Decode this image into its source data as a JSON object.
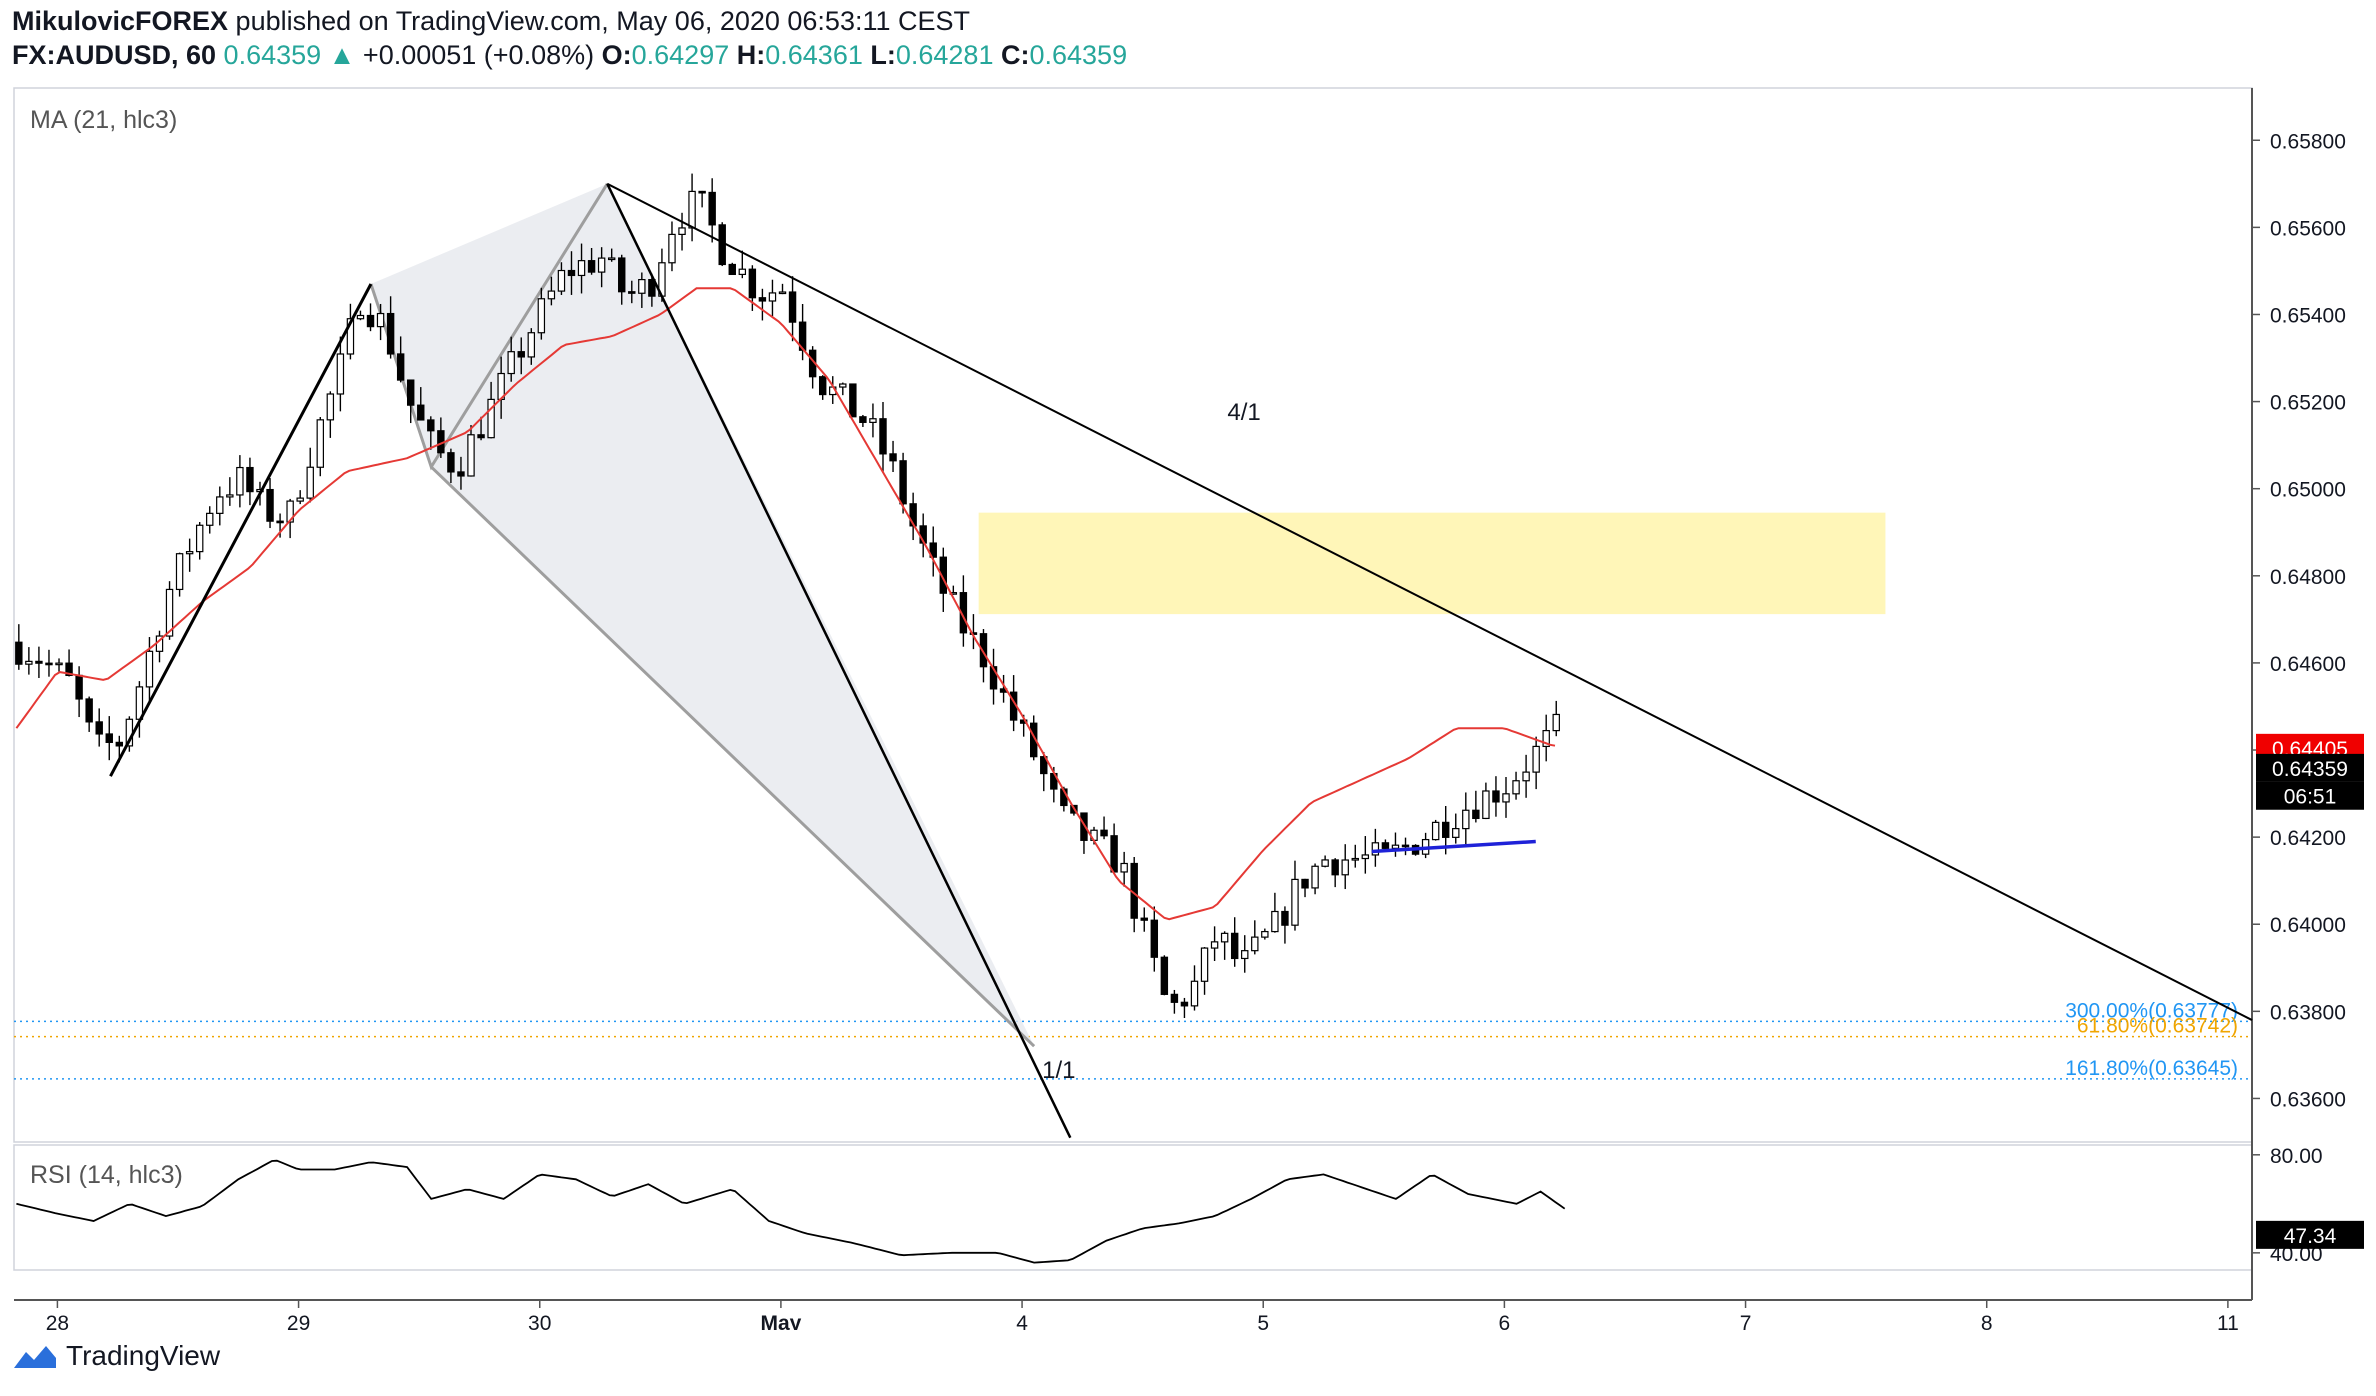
{
  "header": {
    "author": "MikulovicFOREX",
    "published_text": " published on TradingView.com, May 06, 2020 06:53:11 CEST",
    "symbol": "FX:AUDUSD, 60",
    "last": "0.64359",
    "change": "+0.00051 (+0.08%)",
    "o_label": "O:",
    "o": "0.64297",
    "h_label": "H:",
    "h": "0.64361",
    "l_label": "L:",
    "l": "0.64281",
    "c_label": "C:",
    "c": "0.64359"
  },
  "indicators": {
    "ma_label": "MA (21, hlc3)",
    "rsi_label": "RSI (14, hlc3)"
  },
  "footer": {
    "brand": "TradingView"
  },
  "colors": {
    "ma_line": "#e53935",
    "candle": "#000000",
    "zone": "#fff6b8",
    "harmonic_fill": "#e6e8ee",
    "fib_blue": "#2196f3",
    "fib_orange": "#f0a500",
    "support_line": "#1e22d8",
    "price_tag_ma": "#f00000",
    "price_tag_last": "#000000"
  },
  "chart_data": {
    "type": "candlestick",
    "symbol": "FX:AUDUSD",
    "timeframe": "60",
    "price_axis": {
      "ylim": [
        0.635,
        0.6592
      ],
      "ticks": [
        "0.65800",
        "0.65600",
        "0.65400",
        "0.65200",
        "0.65000",
        "0.64800",
        "0.64600",
        "0.64400",
        "0.64200",
        "0.64000",
        "0.63800",
        "0.63600"
      ]
    },
    "time_axis": {
      "days": [
        {
          "label": "28",
          "day": 0
        },
        {
          "label": "29",
          "day": 1
        },
        {
          "label": "30",
          "day": 2
        },
        {
          "label": "May",
          "day": 3
        },
        {
          "label": "4",
          "day": 4
        },
        {
          "label": "5",
          "day": 5
        },
        {
          "label": "6",
          "day": 6
        },
        {
          "label": "7",
          "day": 7
        },
        {
          "label": "8",
          "day": 8
        },
        {
          "label": "11",
          "day": 9
        }
      ],
      "range": [
        -0.18,
        9.1
      ]
    },
    "price_tags": [
      {
        "text": "0.64405",
        "value": 0.64405,
        "style": "ma"
      },
      {
        "text": "0.64359",
        "value": 0.64359,
        "style": "last"
      },
      {
        "text": "06:51",
        "value": 0.64295,
        "style": "last"
      }
    ],
    "ma_anchors": [
      [
        -0.17,
        0.6445
      ],
      [
        0.0,
        0.6458
      ],
      [
        0.2,
        0.6456
      ],
      [
        0.4,
        0.6464
      ],
      [
        0.6,
        0.6474
      ],
      [
        0.8,
        0.6482
      ],
      [
        1.0,
        0.6495
      ],
      [
        1.2,
        0.6504
      ],
      [
        1.45,
        0.6507
      ],
      [
        1.7,
        0.6513
      ],
      [
        1.9,
        0.6524
      ],
      [
        2.1,
        0.6533
      ],
      [
        2.3,
        0.6535
      ],
      [
        2.5,
        0.654
      ],
      [
        2.65,
        0.6546
      ],
      [
        2.8,
        0.6546
      ],
      [
        3.0,
        0.6538
      ],
      [
        3.2,
        0.6525
      ],
      [
        3.4,
        0.6506
      ],
      [
        3.6,
        0.6487
      ],
      [
        3.8,
        0.6466
      ],
      [
        4.0,
        0.6448
      ],
      [
        4.2,
        0.6428
      ],
      [
        4.4,
        0.641
      ],
      [
        4.6,
        0.6401
      ],
      [
        4.8,
        0.6404
      ],
      [
        5.0,
        0.6417
      ],
      [
        5.2,
        0.6428
      ],
      [
        5.4,
        0.6433
      ],
      [
        5.6,
        0.6438
      ],
      [
        5.8,
        0.6445
      ],
      [
        6.0,
        0.6445
      ],
      [
        6.2,
        0.6441
      ]
    ],
    "price_anchors": [
      [
        -0.17,
        0.6465
      ],
      [
        -0.05,
        0.6462
      ],
      [
        0.1,
        0.6455
      ],
      [
        0.2,
        0.644
      ],
      [
        0.3,
        0.6442
      ],
      [
        0.4,
        0.6458
      ],
      [
        0.5,
        0.6476
      ],
      [
        0.6,
        0.6488
      ],
      [
        0.7,
        0.6499
      ],
      [
        0.8,
        0.6502
      ],
      [
        0.9,
        0.6495
      ],
      [
        1.0,
        0.6493
      ],
      [
        1.1,
        0.651
      ],
      [
        1.2,
        0.6525
      ],
      [
        1.3,
        0.6544
      ],
      [
        1.4,
        0.6537
      ],
      [
        1.5,
        0.652
      ],
      [
        1.6,
        0.6509
      ],
      [
        1.7,
        0.6505
      ],
      [
        1.85,
        0.652
      ],
      [
        2.0,
        0.6536
      ],
      [
        2.15,
        0.655
      ],
      [
        2.3,
        0.6553
      ],
      [
        2.4,
        0.6544
      ],
      [
        2.5,
        0.6547
      ],
      [
        2.6,
        0.6562
      ],
      [
        2.7,
        0.6566
      ],
      [
        2.8,
        0.6555
      ],
      [
        2.95,
        0.6545
      ],
      [
        3.05,
        0.6546
      ],
      [
        3.2,
        0.6525
      ],
      [
        3.4,
        0.6515
      ],
      [
        3.5,
        0.6505
      ],
      [
        3.6,
        0.649
      ],
      [
        3.7,
        0.6478
      ],
      [
        3.8,
        0.6468
      ],
      [
        3.9,
        0.646
      ],
      [
        4.0,
        0.6448
      ],
      [
        4.1,
        0.6438
      ],
      [
        4.2,
        0.6425
      ],
      [
        4.3,
        0.642
      ],
      [
        4.45,
        0.6414
      ],
      [
        4.55,
        0.6397
      ],
      [
        4.65,
        0.638
      ],
      [
        4.75,
        0.6385
      ],
      [
        4.85,
        0.6398
      ],
      [
        4.95,
        0.639
      ],
      [
        5.1,
        0.64
      ],
      [
        5.2,
        0.641
      ],
      [
        5.3,
        0.6415
      ],
      [
        5.45,
        0.6415
      ],
      [
        5.55,
        0.6415
      ],
      [
        5.7,
        0.642
      ],
      [
        5.85,
        0.6426
      ],
      [
        6.05,
        0.6432
      ],
      [
        6.3,
        0.6447
      ],
      [
        6.45,
        0.6455
      ],
      [
        6.55,
        0.646
      ],
      [
        6.7,
        0.6446
      ],
      [
        6.8,
        0.6422
      ],
      [
        6.95,
        0.644
      ],
      [
        7.05,
        0.645
      ],
      [
        7.15,
        0.6455
      ],
      [
        7.25,
        0.6452
      ],
      [
        7.4,
        0.6448
      ],
      [
        7.55,
        0.6436
      ],
      [
        7.7,
        0.6432
      ],
      [
        7.85,
        0.643
      ],
      [
        8.0,
        0.6435
      ],
      [
        8.1,
        0.6436
      ]
    ],
    "harmonic_pattern": {
      "points": {
        "X": [
          0.22,
          0.6434
        ],
        "A": [
          1.3,
          0.6547
        ],
        "B": [
          1.55,
          0.6505
        ],
        "C": [
          2.28,
          0.657
        ],
        "D": [
          4.05,
          0.6372
        ]
      },
      "extension_end": [
        4.2,
        0.6351
      ]
    },
    "trendline": {
      "from": [
        2.28,
        0.657
      ],
      "to": [
        9.1,
        0.6378
      ],
      "label": "4/1"
    },
    "label_1_1": "1/1",
    "zone": {
      "x1": 3.82,
      "x2": 7.58,
      "y1": 0.64945,
      "y2": 0.64712
    },
    "support_line": {
      "from": [
        5.45,
        0.64167
      ],
      "to": [
        6.13,
        0.6419
      ]
    },
    "fib_levels": [
      {
        "text": "300.00%(0.63777)",
        "value": 0.63777,
        "color": "blue"
      },
      {
        "text": "61.80%(0.63742)",
        "value": 0.63742,
        "color": "orange"
      },
      {
        "text": "161.80%(0.63645)",
        "value": 0.63645,
        "color": "blue"
      }
    ],
    "rsi": {
      "ylim": [
        33,
        84
      ],
      "ticks": [
        "80.00",
        "40.00"
      ],
      "last": "47.34",
      "anchors": [
        [
          -0.17,
          60
        ],
        [
          0.0,
          56
        ],
        [
          0.15,
          53
        ],
        [
          0.3,
          60
        ],
        [
          0.45,
          55
        ],
        [
          0.6,
          59
        ],
        [
          0.75,
          70
        ],
        [
          0.9,
          78
        ],
        [
          1.0,
          74
        ],
        [
          1.15,
          74
        ],
        [
          1.3,
          77
        ],
        [
          1.45,
          75
        ],
        [
          1.55,
          62
        ],
        [
          1.7,
          66
        ],
        [
          1.85,
          62
        ],
        [
          2.0,
          72
        ],
        [
          2.15,
          70
        ],
        [
          2.3,
          63
        ],
        [
          2.45,
          68
        ],
        [
          2.6,
          60
        ],
        [
          2.8,
          66
        ],
        [
          2.95,
          53
        ],
        [
          3.1,
          48
        ],
        [
          3.3,
          44
        ],
        [
          3.5,
          39
        ],
        [
          3.7,
          40
        ],
        [
          3.9,
          40
        ],
        [
          4.05,
          36
        ],
        [
          4.2,
          37
        ],
        [
          4.35,
          45
        ],
        [
          4.5,
          50
        ],
        [
          4.65,
          52
        ],
        [
          4.8,
          55
        ],
        [
          4.95,
          62
        ],
        [
          5.1,
          70
        ],
        [
          5.25,
          72
        ],
        [
          5.4,
          67
        ],
        [
          5.55,
          62
        ],
        [
          5.7,
          72
        ],
        [
          5.85,
          64
        ],
        [
          6.05,
          60
        ],
        [
          6.15,
          65
        ],
        [
          6.25,
          58
        ]
      ]
    }
  }
}
